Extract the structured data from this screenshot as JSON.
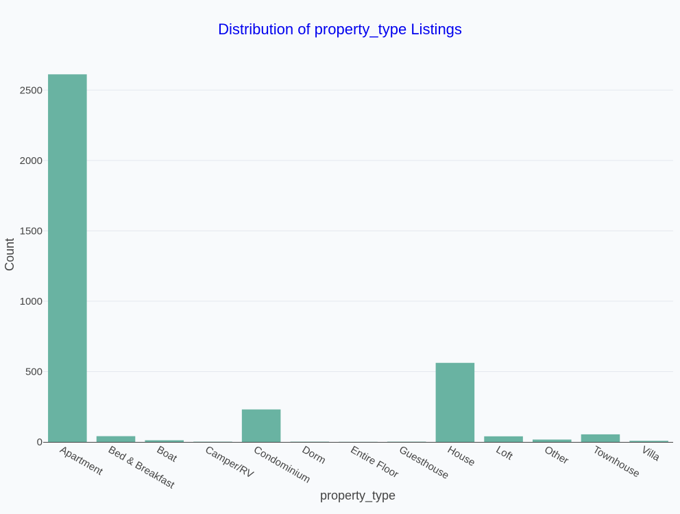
{
  "chart_data": {
    "type": "bar",
    "title": "Distribution of property_type Listings",
    "xlabel": "property_type",
    "ylabel": "Count",
    "categories": [
      "Apartment",
      "Bed & Breakfast",
      "Boat",
      "Camper/RV",
      "Condominium",
      "Dorm",
      "Entire Floor",
      "Guesthouse",
      "House",
      "Loft",
      "Other",
      "Townhouse",
      "Villa"
    ],
    "values": [
      2612,
      41,
      12,
      2,
      231,
      2,
      1,
      2,
      562,
      40,
      17,
      54,
      8
    ],
    "ylim": [
      0,
      2750
    ],
    "yticks": [
      0,
      500,
      1000,
      1500,
      2000,
      2500
    ],
    "grid": true,
    "legend": "none",
    "colors": {
      "bar": "#69b3a2",
      "background": "#f8fafc",
      "title": "#0000ee",
      "text": "#444444",
      "grid": "#e4e8ee"
    }
  }
}
